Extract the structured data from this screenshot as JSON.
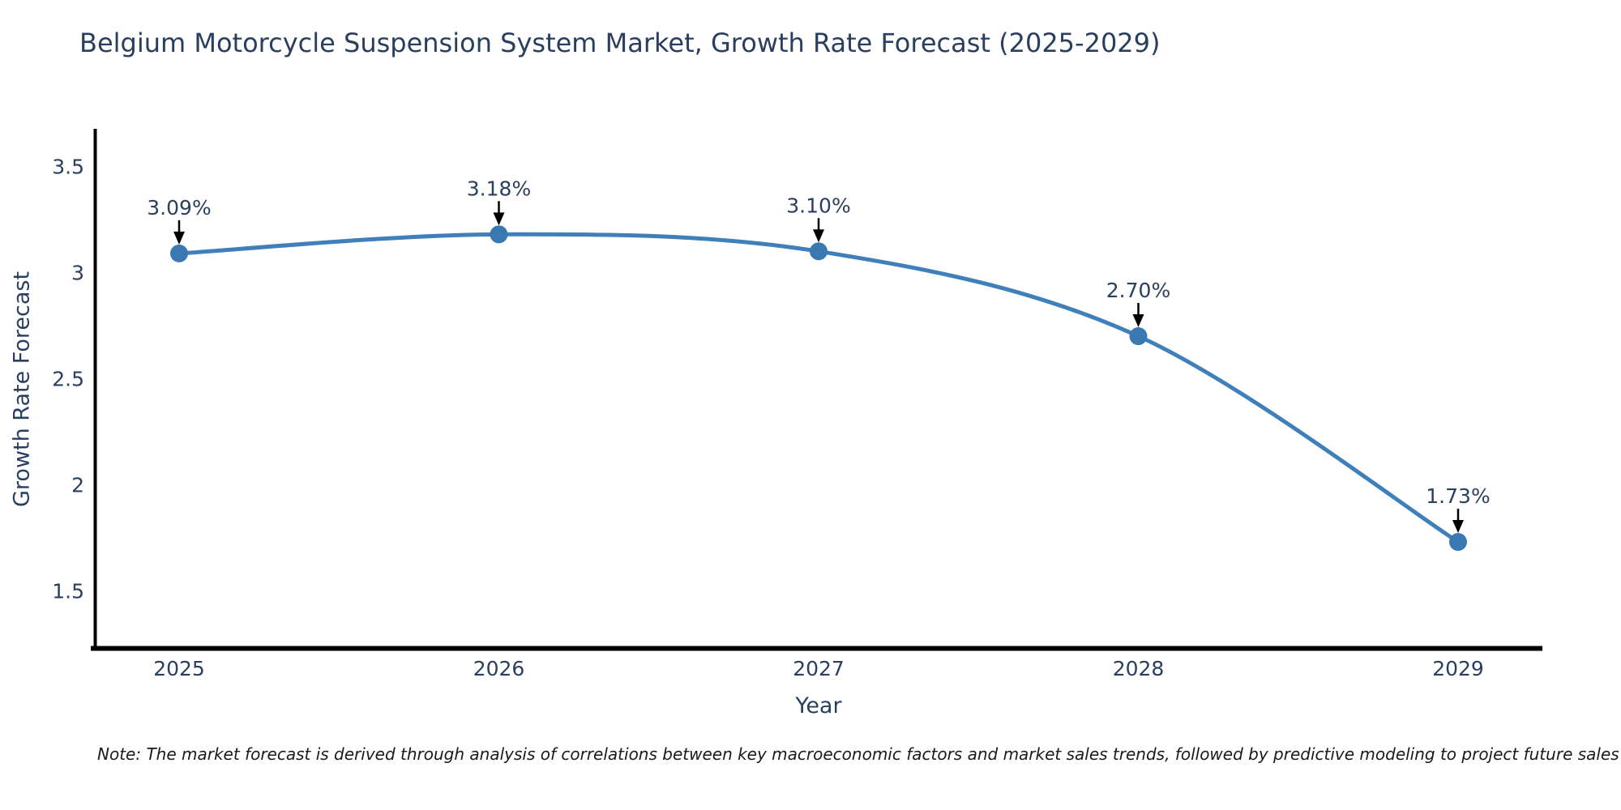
{
  "title": "Belgium Motorcycle Suspension System Market, Growth Rate Forecast (2025-2029)",
  "note": "Note: The market forecast is derived through analysis of correlations between key macroeconomic factors and market sales trends, followed by predictive modeling to project future sales",
  "colors": {
    "line": "#3f7fba",
    "marker": "#3a78b2",
    "text": "#2a3f5f",
    "axis": "#000000",
    "annotation_arrow": "#000000",
    "background": "#ffffff"
  },
  "chart_data": {
    "type": "line",
    "title": "Belgium Motorcycle Suspension System Market, Growth Rate Forecast (2025-2029)",
    "x": [
      "2025",
      "2026",
      "2027",
      "2028",
      "2029"
    ],
    "values": [
      3.09,
      3.18,
      3.1,
      2.7,
      1.73
    ],
    "point_labels": [
      "3.09%",
      "3.18%",
      "3.10%",
      "2.70%",
      "1.73%"
    ],
    "xlabel": "Year",
    "ylabel": "Growth Rate Forecast",
    "yticks": [
      3.5,
      3,
      2.5,
      2,
      1.5
    ],
    "ytick_labels": [
      "3.5",
      "3",
      "2.5",
      "2",
      "1.5"
    ],
    "ylim": [
      1.23,
      3.67
    ],
    "line_shape": "spline",
    "grid": false,
    "legend": "none",
    "annotations": "value labels above each point with downward arrows"
  }
}
